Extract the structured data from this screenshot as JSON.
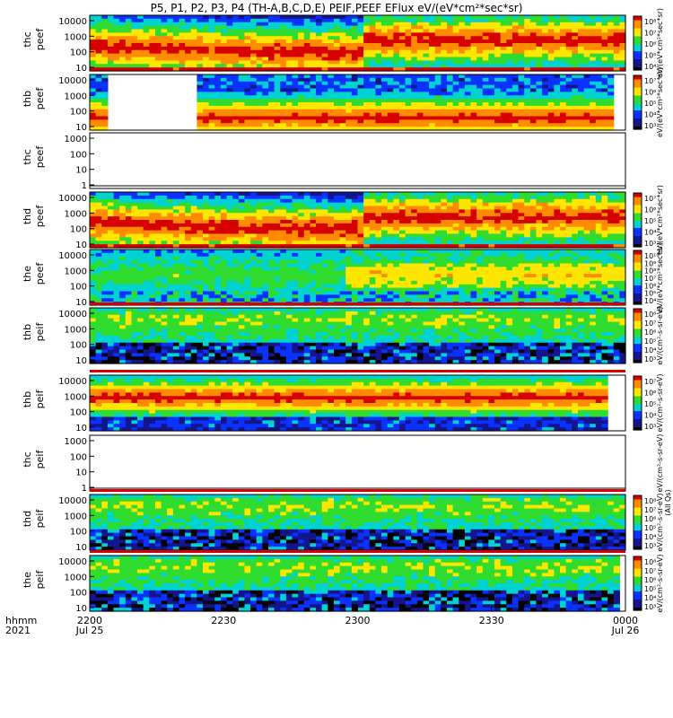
{
  "title": "P5, P1, P2, P3, P4 (TH-A,B,C,D,E) PEIF,PEEF EFlux eV/(eV*cm²*sec*sr)",
  "colors": {
    "red": "#d70000",
    "orange": "#ff8c00",
    "yellow": "#ffe600",
    "green": "#2fdc2f",
    "cyan": "#00d2d2",
    "blue": "#0a32ff",
    "navy": "#14148c",
    "black": "#000000"
  },
  "chart_data": {
    "type": "heatmap",
    "x_start_labels": {
      "hhmm": "hhmm",
      "year": "2021"
    },
    "x_ticks": [
      {
        "label": "2200",
        "sub": "Jul 25",
        "t": 0
      },
      {
        "label": "2230",
        "sub": "",
        "t": 30
      },
      {
        "label": "2300",
        "sub": "",
        "t": 60
      },
      {
        "label": "2330",
        "sub": "",
        "t": 90
      },
      {
        "label": "0000",
        "sub": "Jul 26",
        "t": 120
      }
    ],
    "x_range": [
      0,
      120
    ],
    "panels": [
      {
        "probe": "thc",
        "species": "peef",
        "yticks": [
          "10",
          "100",
          "1000",
          "10000"
        ],
        "cbticks": [
          "10⁴",
          "10⁵",
          "10⁶",
          "10⁷",
          "10⁸"
        ],
        "cbtitle": "eV/(eV*cm²*sec*sr)",
        "profile": "e_hot",
        "gap": [],
        "empty": false
      },
      {
        "probe": "thb",
        "species": "peef",
        "yticks": [
          "10",
          "100",
          "1000",
          "10000"
        ],
        "cbticks": [
          "10³",
          "10⁴",
          "10⁵",
          "10⁶",
          "10⁷"
        ],
        "cbtitle": "eV/(eV*cm²*sec*sr)",
        "profile": "e_blocky",
        "gap": [
          [
            4,
            23
          ],
          [
            117,
            120
          ]
        ],
        "empty": false
      },
      {
        "probe": "thc",
        "species": "peef",
        "yticks": [
          "1",
          "10",
          "100",
          "1000"
        ],
        "cbticks": [],
        "cbtitle": "",
        "profile": "none",
        "gap": [],
        "empty": true
      },
      {
        "probe": "thd",
        "species": "peef",
        "yticks": [
          "10",
          "100",
          "1000",
          "10000"
        ],
        "cbticks": [
          "10³",
          "10⁴",
          "10⁵",
          "10⁶",
          "10⁷"
        ],
        "cbtitle": "eV/(eV*cm²*sec*sr)",
        "profile": "e_hot",
        "gap": [],
        "empty": false
      },
      {
        "probe": "the",
        "species": "peef",
        "yticks": [
          "10",
          "100",
          "1000",
          "10000"
        ],
        "cbticks": [
          "10⁴",
          "10⁵",
          "10⁶",
          "10⁷",
          "10⁸",
          "10⁹",
          "10¹⁰"
        ],
        "cbtitle": "eV/(eV*cm²*sec*sr)",
        "profile": "e_green",
        "gap": [],
        "empty": false
      },
      {
        "probe": "thb",
        "species": "peif",
        "yticks": [
          "10",
          "100",
          "1000",
          "10000"
        ],
        "cbticks": [
          "10³",
          "10⁴",
          "10⁵",
          "10⁶",
          "10⁷",
          "10⁸"
        ],
        "cbtitle": "eV/(cm²-s-sr-eV)",
        "profile": "i_green",
        "gap": [],
        "empty": false
      },
      {
        "probe": "thb",
        "species": "peif",
        "yticks": [
          "10",
          "100",
          "1000",
          "10000"
        ],
        "cbticks": [
          "10³",
          "10⁴",
          "10⁵",
          "10⁶",
          "10⁷"
        ],
        "cbtitle": "eV/(cm²-s-sr-eV)",
        "profile": "i_hot",
        "gap": [
          [
            115,
            120
          ]
        ],
        "empty": false
      },
      {
        "probe": "thc",
        "species": "peif",
        "yticks": [
          "1",
          "10",
          "100",
          "1000"
        ],
        "cbticks": [],
        "cbtitle": "eV/(cm²-s-sr-eV)",
        "profile": "none",
        "gap": [],
        "empty": true
      },
      {
        "probe": "thd",
        "species": "peif",
        "yticks": [
          "10",
          "100",
          "1000",
          "10000"
        ],
        "cbticks": [
          "10³",
          "10⁴",
          "10⁵",
          "10⁶",
          "10⁷",
          "10⁸"
        ],
        "cbtitle": "eV/(cm²-s-sr-eV)",
        "profile": "i_green",
        "gap": [],
        "empty": false
      },
      {
        "probe": "the",
        "species": "peif",
        "yticks": [
          "10",
          "100",
          "1000",
          "10000"
        ],
        "cbticks": [
          "10³",
          "10⁴",
          "10⁵",
          "10⁶",
          "10⁷",
          "10⁸"
        ],
        "cbtitle": "eV/(cm²-s-sr-eV)",
        "profile": "i_green",
        "gap": [
          [
            118,
            120
          ]
        ],
        "empty": false
      }
    ],
    "colorbar_note": "(All Qs)",
    "colorscale": [
      "#000000",
      "#14148c",
      "#0a32ff",
      "#00d2d2",
      "#2fdc2f",
      "#ffe600",
      "#ff8c00",
      "#d70000"
    ]
  }
}
